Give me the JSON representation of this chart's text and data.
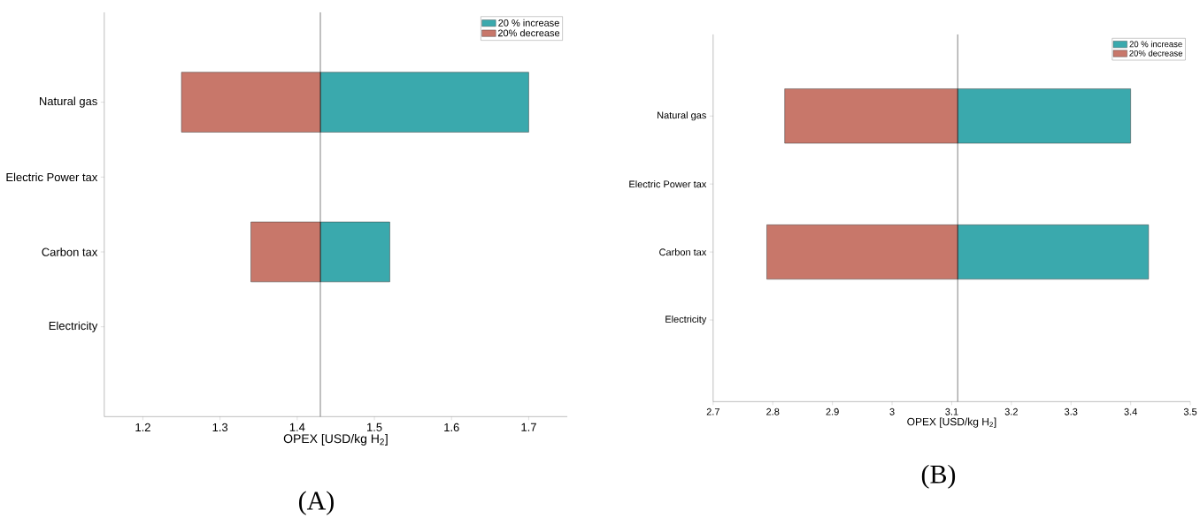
{
  "chart_data": [
    {
      "type": "bar",
      "orientation": "horizontal",
      "categories": [
        "Natural gas",
        "Electric Power tax",
        "Carbon tax",
        "Electricity"
      ],
      "series": [
        {
          "name": "20 % increase",
          "color": "#3aa9ad",
          "values": [
            0.27,
            null,
            0.09,
            null
          ],
          "base": [
            1.43,
            null,
            1.43,
            null
          ]
        },
        {
          "name": "20% decrease",
          "color": "#c8776a",
          "values": [
            0.18,
            null,
            0.09,
            null
          ],
          "base": [
            1.25,
            null,
            1.34,
            null
          ]
        }
      ],
      "xlim": [
        1.15,
        1.75
      ],
      "xticks": [
        1.2,
        1.3,
        1.4,
        1.5,
        1.6,
        1.7
      ],
      "xlabel": "OPEX [USD/kg H$_{2}$]",
      "ref_lines": [
        {
          "axis": "x",
          "value": 1.43,
          "color": "#000000"
        }
      ],
      "legend": "top right",
      "annotations": [
        "(A)"
      ]
    },
    {
      "type": "bar",
      "orientation": "horizontal",
      "categories": [
        "Natural gas",
        "Electric Power tax",
        "Carbon tax",
        "Electricity"
      ],
      "series": [
        {
          "name": "20 % increase",
          "color": "#3aa9ad",
          "values": [
            0.29,
            null,
            0.32,
            null
          ],
          "base": [
            3.11,
            null,
            3.11,
            null
          ]
        },
        {
          "name": "20% decrease",
          "color": "#c8776a",
          "values": [
            0.29,
            null,
            0.32,
            null
          ],
          "base": [
            2.82,
            null,
            2.79,
            null
          ]
        }
      ],
      "xlim": [
        2.7,
        3.5
      ],
      "xticks": [
        2.7,
        2.8,
        2.9,
        3,
        3.1,
        3.2,
        3.3,
        3.4,
        3.5
      ],
      "xlabel": "OPEX [USD/kg H$_{2}$]",
      "ref_lines": [
        {
          "axis": "x",
          "value": 3.11,
          "color": "#000000"
        }
      ],
      "legend": "top right",
      "annotations": [
        "(B)"
      ]
    }
  ]
}
